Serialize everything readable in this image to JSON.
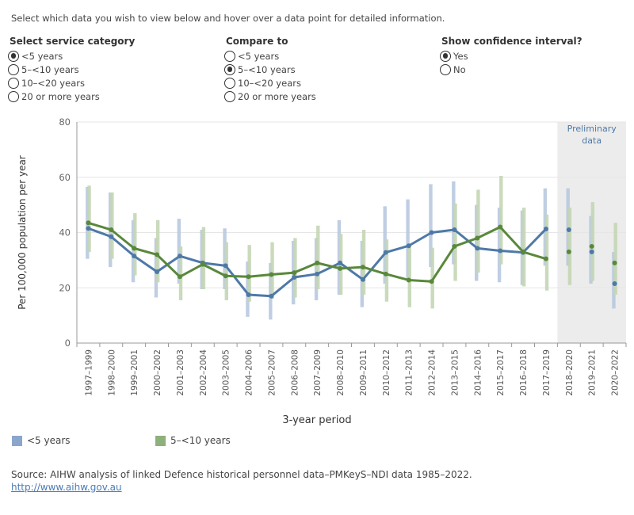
{
  "intro": "Select which data you wish to view below and hover over a data point for detailed information.",
  "controls": {
    "service_category": {
      "title": "Select service category",
      "options": [
        "<5 years",
        "5–<10 years",
        "10–<20 years",
        "20 or more years"
      ],
      "selected": 0
    },
    "compare_to": {
      "title": "Compare to",
      "options": [
        "<5 years",
        "5–<10 years",
        "10–<20 years",
        "20 or more years"
      ],
      "selected": 1
    },
    "confidence": {
      "title": "Show confidence interval?",
      "options": [
        "Yes",
        "No"
      ],
      "selected": 0
    }
  },
  "chart_data": {
    "type": "line",
    "xlabel": "3-year period",
    "ylabel": "Per 100,000 population per year",
    "ylim": [
      0,
      80
    ],
    "yticks": [
      0,
      20,
      40,
      60,
      80
    ],
    "grid": true,
    "categories": [
      "1997–1999",
      "1998–2000",
      "1999–2001",
      "2000–2002",
      "2001–2003",
      "2002–2004",
      "2003–2005",
      "2004–2006",
      "2005–2007",
      "2006–2008",
      "2007–2009",
      "2008–2010",
      "2009–2011",
      "2010–2012",
      "2011–2013",
      "2012–2014",
      "2013–2015",
      "2014–2016",
      "2015–2017",
      "2016–2018",
      "2017–2019",
      "2018–2020",
      "2019–2021",
      "2020–2022"
    ],
    "preliminary": {
      "label": "Preliminary data",
      "from_index": 21
    },
    "series": [
      {
        "name": "<5 years",
        "color": "#4e79a7",
        "ci_color": "#b8c9df",
        "values": [
          41.5,
          38.5,
          31.5,
          25.8,
          31.5,
          29,
          28,
          17.5,
          17,
          23.8,
          25,
          29,
          23,
          32.8,
          35.2,
          40,
          41,
          34.3,
          33.4,
          32.8,
          41.3,
          41,
          33,
          21.5
        ],
        "ci_low": [
          30.5,
          27.5,
          22,
          16.5,
          21.5,
          19.5,
          19.5,
          9.5,
          8.5,
          14,
          15.5,
          17.5,
          13,
          21.5,
          23.5,
          27.5,
          28.5,
          22.5,
          22,
          21,
          28,
          28,
          21.5,
          12.5
        ],
        "ci_high": [
          56.5,
          54.5,
          44.5,
          38,
          45,
          41,
          41.5,
          29.5,
          29,
          37,
          38,
          44.5,
          37,
          49.5,
          52,
          57.5,
          58.5,
          50,
          49,
          48,
          56,
          56,
          46,
          33
        ]
      },
      {
        "name": "5–<10 years",
        "color": "#59883a",
        "ci_color": "#c4d6b5",
        "values": [
          43.5,
          41,
          34.3,
          32,
          24,
          28.5,
          24.3,
          24,
          24.8,
          25.5,
          29,
          27,
          27.5,
          25,
          22.8,
          22.3,
          35,
          38,
          42,
          33,
          30.5,
          33,
          35,
          29
        ],
        "ci_low": [
          33,
          30.5,
          24.5,
          22,
          15.5,
          19.5,
          15.5,
          15,
          16,
          16.5,
          19.5,
          17.5,
          17.5,
          15,
          13,
          12.5,
          22.5,
          25.5,
          28.5,
          20.5,
          19,
          21,
          22.5,
          17.5
        ],
        "ci_high": [
          57,
          54.5,
          47,
          44.5,
          35,
          42,
          36.5,
          35.5,
          36.5,
          38,
          42.5,
          39.5,
          41,
          37.5,
          35,
          34.5,
          50.5,
          55.5,
          60.5,
          49,
          46.5,
          49,
          51,
          43.5
        ]
      }
    ],
    "legend": [
      {
        "label": "<5 years",
        "color": "#8aa6cc"
      },
      {
        "label": "5–<10 years",
        "color": "#8eb07a"
      }
    ]
  },
  "source": "Source: AIHW analysis of linked Defence historical personnel data–PMKeyS–NDI data 1985–2022.",
  "link": "http://www.aihw.gov.au"
}
